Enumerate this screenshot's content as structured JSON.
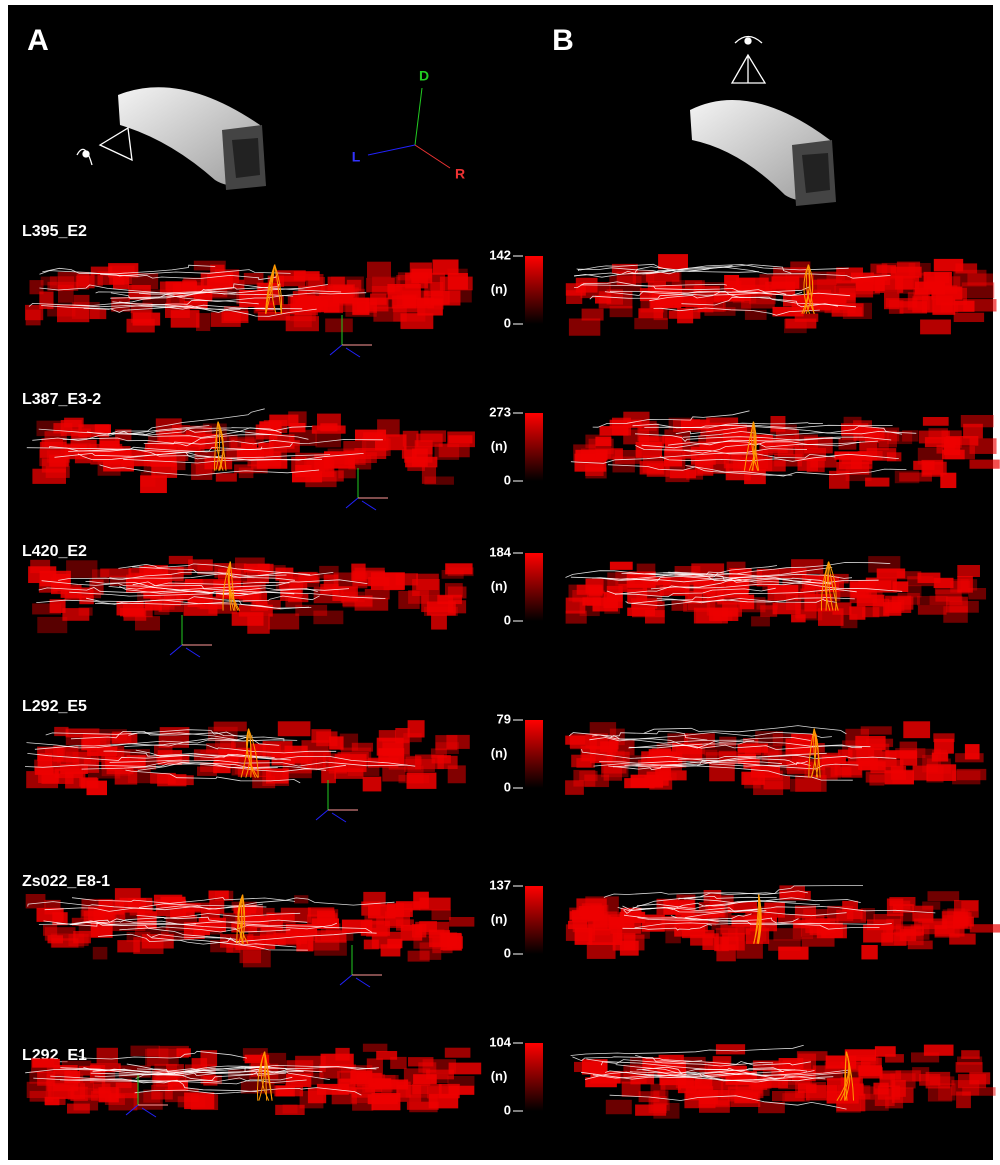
{
  "panels": [
    "A",
    "B"
  ],
  "axes": {
    "dorsal": "D",
    "left": "L",
    "right": "R"
  },
  "rows": [
    {
      "label": "L395_E2",
      "scale_max": 142,
      "unit": "(n)",
      "scale_min": 0
    },
    {
      "label": "L387_E3-2",
      "scale_max": 273,
      "unit": "(n)",
      "scale_min": 0
    },
    {
      "label": "L420_E2",
      "scale_max": 184,
      "unit": "(n)",
      "scale_min": 0
    },
    {
      "label": "L292_E5",
      "scale_max": 79,
      "unit": "(n)",
      "scale_min": 0
    },
    {
      "label": "Zs022_E8-1",
      "scale_max": 137,
      "unit": "(n)",
      "scale_min": 0
    },
    {
      "label": "L292_E1",
      "scale_max": 104,
      "unit": "(n)",
      "scale_min": 0
    }
  ]
}
